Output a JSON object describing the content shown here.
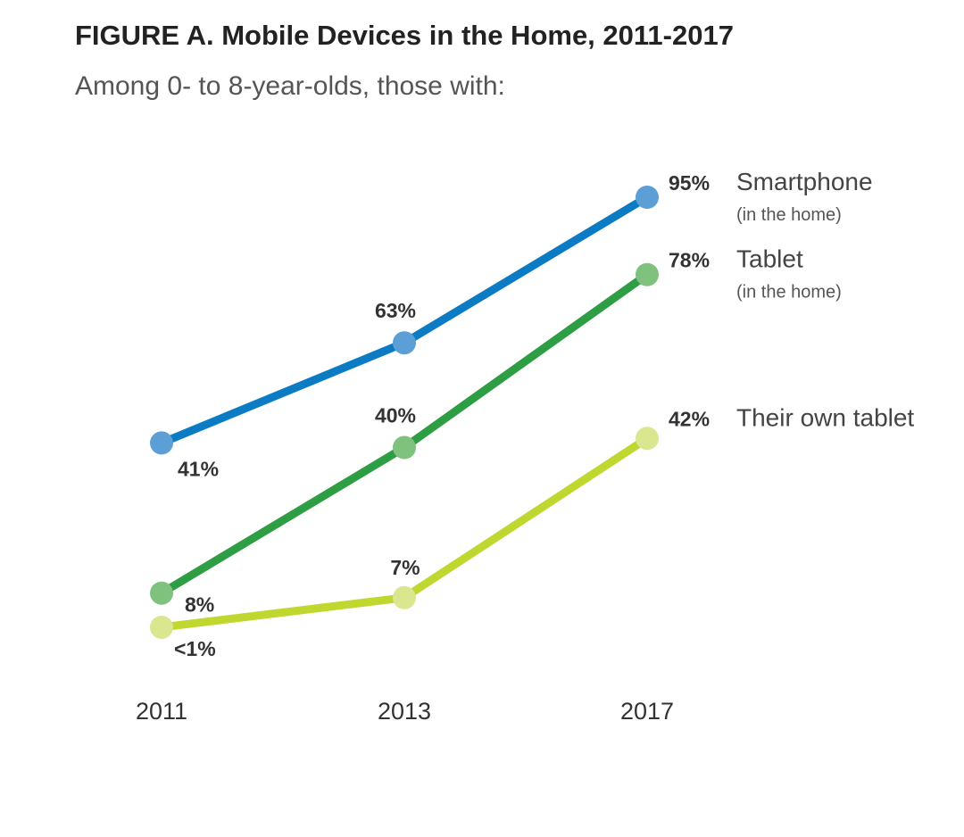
{
  "title": "FIGURE A. Mobile Devices in the Home, 2011-2017",
  "subtitle": "Among 0- to 8-year-olds, those with:",
  "chart_data": {
    "type": "line",
    "title": "FIGURE A. Mobile Devices in the Home, 2011-2017",
    "subtitle": "Among 0- to 8-year-olds, those with:",
    "x": [
      "2011",
      "2013",
      "2017"
    ],
    "ylim": [
      0,
      100
    ],
    "grid": false,
    "xlabel": "",
    "ylabel": "",
    "series": [
      {
        "name": "Smartphone",
        "note": "(in the home)",
        "values": [
          41,
          63,
          95
        ],
        "labels": [
          "41%",
          "63%",
          "95%"
        ],
        "line_color": "#0b7bc4",
        "marker_color": "#5b9fd6"
      },
      {
        "name": "Tablet",
        "note": "(in the home)",
        "values": [
          8,
          40,
          78
        ],
        "labels": [
          "8%",
          "40%",
          "78%"
        ],
        "line_color": "#2e9e44",
        "marker_color": "#7ec27d"
      },
      {
        "name": "Their own tablet",
        "note": "",
        "values": [
          0.5,
          7,
          42
        ],
        "labels": [
          "<1%",
          "7%",
          "42%"
        ],
        "line_color": "#c0d72f",
        "marker_color": "#dbe78e"
      }
    ]
  }
}
